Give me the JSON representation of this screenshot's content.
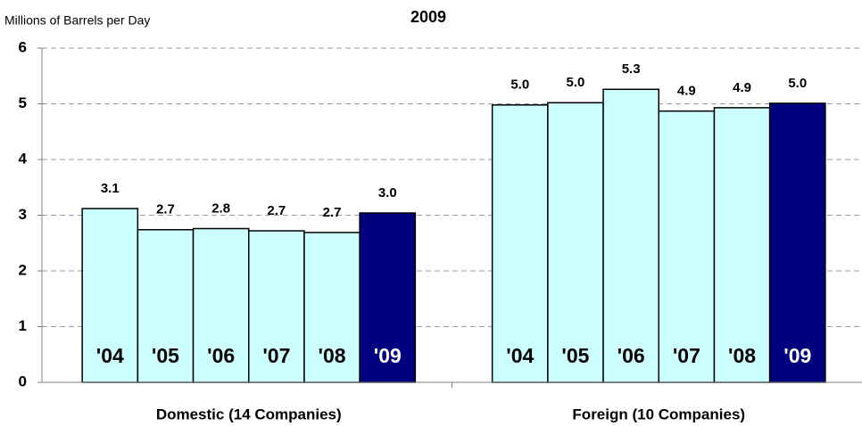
{
  "chart_data": {
    "type": "bar",
    "title": "2009",
    "y_label": "Millions of Barrels per Day",
    "categories": [
      "Domestic (14 Companies)",
      "Foreign (10 Companies)"
    ],
    "series": [
      {
        "name": "'04",
        "color": "#ccffff",
        "values": [
          3.12,
          4.98
        ],
        "value_labels": [
          "3.1",
          "5.0"
        ]
      },
      {
        "name": "'05",
        "color": "#ccffff",
        "values": [
          2.74,
          5.02
        ],
        "value_labels": [
          "2.7",
          "5.0"
        ]
      },
      {
        "name": "'06",
        "color": "#ccffff",
        "values": [
          2.76,
          5.26
        ],
        "value_labels": [
          "2.8",
          "5.3"
        ]
      },
      {
        "name": "'07",
        "color": "#ccffff",
        "values": [
          2.72,
          4.87
        ],
        "value_labels": [
          "2.7",
          "4.9"
        ]
      },
      {
        "name": "'08",
        "color": "#ccffff",
        "values": [
          2.69,
          4.93
        ],
        "value_labels": [
          "2.7",
          "4.9"
        ]
      },
      {
        "name": "'09",
        "color": "#000080",
        "values": [
          3.04,
          5.01
        ],
        "value_labels": [
          "3.0",
          "5.0"
        ]
      }
    ],
    "ylim": [
      0,
      6
    ],
    "yticks": [
      0,
      1,
      2,
      3,
      4,
      5,
      6
    ],
    "grid": true
  }
}
